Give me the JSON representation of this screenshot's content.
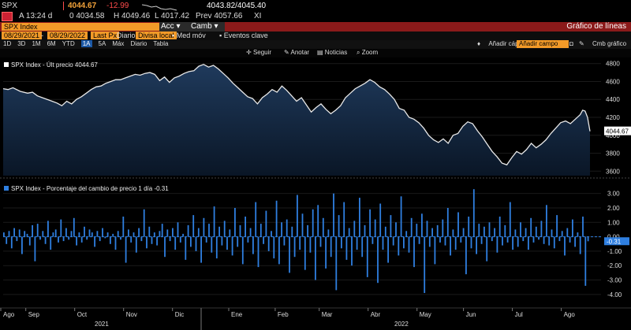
{
  "quote": {
    "ticker": "SPX",
    "last": "4044.67",
    "change": "-12.99",
    "bid_ask": "4043.82/4045.40",
    "time": "A 13:24 d",
    "open": "0 4034.58",
    "high": "H 4049.46",
    "low": "L 4017.42",
    "prev": "Prev 4057.66",
    "exchange": "XI"
  },
  "titlebar": {
    "security": "SPX Index",
    "acc": "Acc",
    "camb": "Camb",
    "title": "Gráfico de líneas"
  },
  "fields": {
    "start_date": "08/29/2021",
    "end_date": "08/29/2022",
    "field": "Last Px",
    "freq": "Diario",
    "currency": "Divisa local",
    "med_mov": "Med móv",
    "events": "Eventos clave"
  },
  "ranges": [
    "1D",
    "3D",
    "1M",
    "6M",
    "YTD",
    "1A",
    "5A",
    "Máx",
    "Diario",
    "Tabla"
  ],
  "selected_range": "1A",
  "add_study": "Añadir cápc",
  "study_field": "Añadir campo",
  "chart_menu": "Cmb gráfico",
  "toolbar": {
    "seguir": "Seguir",
    "anotar": "Anotar",
    "noticias": "Noticias",
    "zoom": "Zoom"
  },
  "chart_data": [
    {
      "type": "area",
      "legend": "SPX Index - Últ precio 4044.67",
      "last_label": "4044.67",
      "ylim": [
        3550,
        4850
      ],
      "yticks": [
        3600,
        3800,
        4000,
        4200,
        4400,
        4600,
        4800
      ],
      "x_range": [
        0,
        12
      ],
      "points": [
        [
          0,
          4520
        ],
        [
          0.1,
          4510
        ],
        [
          0.2,
          4530
        ],
        [
          0.35,
          4490
        ],
        [
          0.5,
          4470
        ],
        [
          0.6,
          4480
        ],
        [
          0.7,
          4440
        ],
        [
          0.8,
          4420
        ],
        [
          0.9,
          4400
        ],
        [
          1.0,
          4380
        ],
        [
          1.1,
          4360
        ],
        [
          1.2,
          4330
        ],
        [
          1.3,
          4380
        ],
        [
          1.4,
          4350
        ],
        [
          1.5,
          4400
        ],
        [
          1.6,
          4430
        ],
        [
          1.7,
          4470
        ],
        [
          1.8,
          4510
        ],
        [
          1.9,
          4540
        ],
        [
          2.0,
          4550
        ],
        [
          2.1,
          4580
        ],
        [
          2.2,
          4600
        ],
        [
          2.3,
          4620
        ],
        [
          2.4,
          4620
        ],
        [
          2.5,
          4640
        ],
        [
          2.6,
          4660
        ],
        [
          2.7,
          4680
        ],
        [
          2.8,
          4670
        ],
        [
          2.9,
          4690
        ],
        [
          3.0,
          4700
        ],
        [
          3.1,
          4680
        ],
        [
          3.2,
          4610
        ],
        [
          3.3,
          4650
        ],
        [
          3.4,
          4590
        ],
        [
          3.5,
          4640
        ],
        [
          3.6,
          4660
        ],
        [
          3.7,
          4690
        ],
        [
          3.8,
          4710
        ],
        [
          3.9,
          4720
        ],
        [
          4.0,
          4770
        ],
        [
          4.1,
          4790
        ],
        [
          4.2,
          4760
        ],
        [
          4.3,
          4780
        ],
        [
          4.4,
          4740
        ],
        [
          4.5,
          4690
        ],
        [
          4.6,
          4640
        ],
        [
          4.7,
          4580
        ],
        [
          4.8,
          4530
        ],
        [
          4.9,
          4480
        ],
        [
          5.0,
          4430
        ],
        [
          5.1,
          4410
        ],
        [
          5.2,
          4350
        ],
        [
          5.3,
          4420
        ],
        [
          5.4,
          4460
        ],
        [
          5.5,
          4510
        ],
        [
          5.6,
          4480
        ],
        [
          5.7,
          4550
        ],
        [
          5.8,
          4500
        ],
        [
          5.9,
          4440
        ],
        [
          6.0,
          4380
        ],
        [
          6.1,
          4420
        ],
        [
          6.2,
          4340
        ],
        [
          6.3,
          4260
        ],
        [
          6.4,
          4310
        ],
        [
          6.5,
          4350
        ],
        [
          6.6,
          4290
        ],
        [
          6.7,
          4240
        ],
        [
          6.8,
          4280
        ],
        [
          6.9,
          4330
        ],
        [
          7.0,
          4420
        ],
        [
          7.1,
          4470
        ],
        [
          7.2,
          4520
        ],
        [
          7.3,
          4550
        ],
        [
          7.4,
          4580
        ],
        [
          7.5,
          4620
        ],
        [
          7.6,
          4590
        ],
        [
          7.7,
          4540
        ],
        [
          7.8,
          4510
        ],
        [
          7.9,
          4460
        ],
        [
          8.0,
          4400
        ],
        [
          8.1,
          4300
        ],
        [
          8.2,
          4280
        ],
        [
          8.3,
          4200
        ],
        [
          8.4,
          4180
        ],
        [
          8.5,
          4140
        ],
        [
          8.6,
          4080
        ],
        [
          8.7,
          4000
        ],
        [
          8.8,
          3950
        ],
        [
          8.9,
          3920
        ],
        [
          9.0,
          3960
        ],
        [
          9.1,
          3910
        ],
        [
          9.2,
          4000
        ],
        [
          9.3,
          4020
        ],
        [
          9.4,
          4100
        ],
        [
          9.5,
          4150
        ],
        [
          9.6,
          4130
        ],
        [
          9.7,
          4050
        ],
        [
          9.8,
          3980
        ],
        [
          9.9,
          3900
        ],
        [
          10.0,
          3820
        ],
        [
          10.1,
          3760
        ],
        [
          10.2,
          3690
        ],
        [
          10.3,
          3670
        ],
        [
          10.4,
          3750
        ],
        [
          10.5,
          3820
        ],
        [
          10.6,
          3790
        ],
        [
          10.7,
          3840
        ],
        [
          10.8,
          3910
        ],
        [
          10.9,
          3860
        ],
        [
          11.0,
          3900
        ],
        [
          11.1,
          3950
        ],
        [
          11.2,
          4020
        ],
        [
          11.3,
          4080
        ],
        [
          11.4,
          4140
        ],
        [
          11.5,
          4160
        ],
        [
          11.6,
          4130
        ],
        [
          11.7,
          4180
        ],
        [
          11.8,
          4230
        ],
        [
          11.85,
          4280
        ],
        [
          11.9,
          4270
        ],
        [
          11.95,
          4200
        ],
        [
          12.0,
          4044.67
        ]
      ]
    },
    {
      "type": "bar",
      "legend": "SPX Index - Porcentaje del cambio de precio 1 día -0.31",
      "last_label": "-0.31",
      "ylim": [
        -4.5,
        3.8
      ],
      "yticks": [
        3.0,
        2.0,
        1.0,
        0.0,
        -1.0,
        -2.0,
        -3.0,
        -4.0
      ],
      "ytick_labels": [
        "3.00",
        "2.00",
        "1.00",
        "0.00",
        "-1.00",
        "-2.00",
        "-3.00",
        "-4.00"
      ],
      "values": [
        0.3,
        -0.5,
        0.4,
        -0.8,
        0.6,
        -0.3,
        0.5,
        -1.2,
        0.4,
        0.2,
        -0.6,
        0.8,
        -1.7,
        0.9,
        -0.2,
        0.4,
        -0.5,
        1.1,
        -0.9,
        0.3,
        0.5,
        -0.4,
        1.2,
        -0.3,
        0.6,
        -0.2,
        0.4,
        1.3,
        -0.6,
        0.3,
        -0.4,
        0.7,
        -0.2,
        0.5,
        0.3,
        -0.7,
        0.4,
        -0.3,
        0.6,
        -0.1,
        0.3,
        -0.5,
        0.2,
        -0.9,
        0.4,
        -0.2,
        1.4,
        -1.8,
        0.5,
        -0.4,
        0.3,
        -1.1,
        0.6,
        -0.3,
        1.9,
        -0.8,
        0.7,
        -0.5,
        0.3,
        -0.6,
        0.4,
        0.9,
        -1.4,
        0.5,
        -0.3,
        0.6,
        -0.9,
        1.0,
        -0.4,
        0.2,
        -1.6,
        0.8,
        -0.7,
        1.5,
        -1.0,
        0.6,
        -1.8,
        1.3,
        -0.4,
        0.9,
        -1.1,
        2.1,
        -1.5,
        0.7,
        -0.6,
        1.1,
        -0.9,
        0.5,
        -1.3,
        2.0,
        -0.7,
        0.8,
        -1.9,
        1.4,
        -0.4,
        0.6,
        -1.2,
        2.4,
        -2.1,
        0.9,
        -0.5,
        1.8,
        -1.0,
        0.4,
        -1.5,
        2.5,
        -1.9,
        1.0,
        -0.6,
        1.2,
        -2.5,
        0.7,
        -1.4,
        2.9,
        -0.9,
        1.6,
        -2.3,
        0.8,
        -1.1,
        1.9,
        -3.0,
        2.2,
        -0.7,
        1.3,
        -2.2,
        0.5,
        -1.4,
        3.0,
        -3.7,
        1.5,
        -0.8,
        2.4,
        -1.6,
        0.6,
        -2.0,
        1.1,
        -0.9,
        2.7,
        -1.4,
        0.8,
        -2.8,
        1.9,
        -0.5,
        1.2,
        -3.2,
        2.3,
        -0.9,
        0.7,
        -1.8,
        1.5,
        -0.6,
        1.0,
        -1.3,
        2.8,
        -0.8,
        0.4,
        -1.1,
        1.3,
        -2.1,
        0.9,
        -0.5,
        1.6,
        -3.9,
        1.1,
        -0.7,
        0.6,
        -1.9,
        0.8,
        -0.4,
        1.2,
        -0.6,
        2.0,
        -1.3,
        0.5,
        -0.9,
        1.7,
        -0.4,
        0.6,
        -2.6,
        1.4,
        -0.8,
        3.3,
        -1.2,
        0.9,
        -0.5,
        0.7,
        -1.7,
        1.0,
        -0.3,
        0.6,
        -1.1,
        1.4,
        -0.6,
        0.8,
        -0.4,
        2.4,
        -0.9,
        0.5,
        -0.7,
        1.0,
        -0.3,
        0.6,
        -0.9,
        1.3,
        -0.4,
        0.7,
        -0.2,
        1.1,
        -0.5,
        2.2,
        -0.6,
        0.5,
        -0.8,
        1.5,
        -0.3,
        0.4,
        -1.3,
        0.6,
        -0.4,
        1.2,
        -0.7,
        0.3,
        -1.2,
        1.4,
        -3.4,
        -0.31
      ]
    }
  ],
  "x_axis": {
    "months": [
      "Ago",
      "Sep",
      "Oct",
      "Nov",
      "Dic",
      "Ene",
      "Feb",
      "Mar",
      "Abr",
      "May",
      "Jun",
      "Jul",
      "Ago"
    ],
    "years": [
      "2021",
      "2022"
    ]
  },
  "colors": {
    "line": "#e8e8e8",
    "area_top": "#1f3a5c",
    "area_bottom": "#0a1626",
    "bar": "#2f7fe0",
    "accent": "#f29a28",
    "title_bar": "#8b1a1a"
  }
}
